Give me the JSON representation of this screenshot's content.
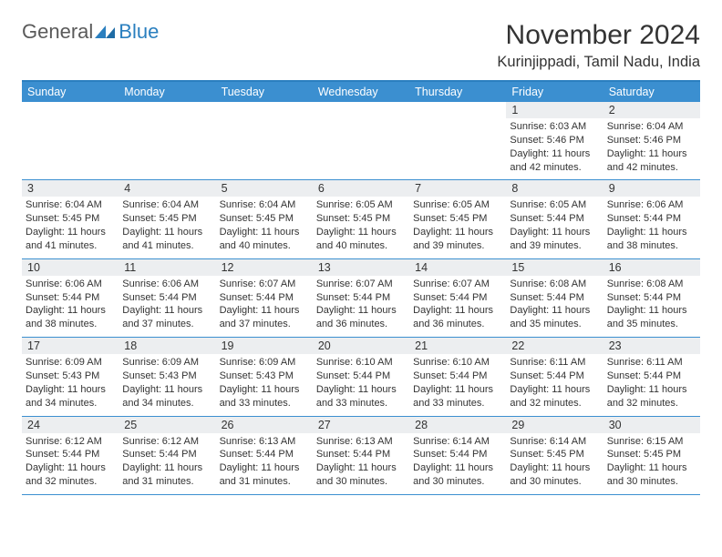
{
  "logo": {
    "general": "General",
    "blue": "Blue",
    "shape_color": "#2a7fbf"
  },
  "title": "November 2024",
  "location": "Kurinjippadi, Tamil Nadu, India",
  "colors": {
    "header_bar": "#3b8fd0",
    "border": "#2a7fbf",
    "daynum_bg": "#eceef0",
    "text": "#333333",
    "bg": "#ffffff"
  },
  "dow": [
    "Sunday",
    "Monday",
    "Tuesday",
    "Wednesday",
    "Thursday",
    "Friday",
    "Saturday"
  ],
  "weeks": [
    [
      {
        "n": "",
        "empty": true
      },
      {
        "n": "",
        "empty": true
      },
      {
        "n": "",
        "empty": true
      },
      {
        "n": "",
        "empty": true
      },
      {
        "n": "",
        "empty": true
      },
      {
        "n": "1",
        "sr": "6:03 AM",
        "ss": "5:46 PM",
        "dl": "11 hours and 42 minutes."
      },
      {
        "n": "2",
        "sr": "6:04 AM",
        "ss": "5:46 PM",
        "dl": "11 hours and 42 minutes."
      }
    ],
    [
      {
        "n": "3",
        "sr": "6:04 AM",
        "ss": "5:45 PM",
        "dl": "11 hours and 41 minutes."
      },
      {
        "n": "4",
        "sr": "6:04 AM",
        "ss": "5:45 PM",
        "dl": "11 hours and 41 minutes."
      },
      {
        "n": "5",
        "sr": "6:04 AM",
        "ss": "5:45 PM",
        "dl": "11 hours and 40 minutes."
      },
      {
        "n": "6",
        "sr": "6:05 AM",
        "ss": "5:45 PM",
        "dl": "11 hours and 40 minutes."
      },
      {
        "n": "7",
        "sr": "6:05 AM",
        "ss": "5:45 PM",
        "dl": "11 hours and 39 minutes."
      },
      {
        "n": "8",
        "sr": "6:05 AM",
        "ss": "5:44 PM",
        "dl": "11 hours and 39 minutes."
      },
      {
        "n": "9",
        "sr": "6:06 AM",
        "ss": "5:44 PM",
        "dl": "11 hours and 38 minutes."
      }
    ],
    [
      {
        "n": "10",
        "sr": "6:06 AM",
        "ss": "5:44 PM",
        "dl": "11 hours and 38 minutes."
      },
      {
        "n": "11",
        "sr": "6:06 AM",
        "ss": "5:44 PM",
        "dl": "11 hours and 37 minutes."
      },
      {
        "n": "12",
        "sr": "6:07 AM",
        "ss": "5:44 PM",
        "dl": "11 hours and 37 minutes."
      },
      {
        "n": "13",
        "sr": "6:07 AM",
        "ss": "5:44 PM",
        "dl": "11 hours and 36 minutes."
      },
      {
        "n": "14",
        "sr": "6:07 AM",
        "ss": "5:44 PM",
        "dl": "11 hours and 36 minutes."
      },
      {
        "n": "15",
        "sr": "6:08 AM",
        "ss": "5:44 PM",
        "dl": "11 hours and 35 minutes."
      },
      {
        "n": "16",
        "sr": "6:08 AM",
        "ss": "5:44 PM",
        "dl": "11 hours and 35 minutes."
      }
    ],
    [
      {
        "n": "17",
        "sr": "6:09 AM",
        "ss": "5:43 PM",
        "dl": "11 hours and 34 minutes."
      },
      {
        "n": "18",
        "sr": "6:09 AM",
        "ss": "5:43 PM",
        "dl": "11 hours and 34 minutes."
      },
      {
        "n": "19",
        "sr": "6:09 AM",
        "ss": "5:43 PM",
        "dl": "11 hours and 33 minutes."
      },
      {
        "n": "20",
        "sr": "6:10 AM",
        "ss": "5:44 PM",
        "dl": "11 hours and 33 minutes."
      },
      {
        "n": "21",
        "sr": "6:10 AM",
        "ss": "5:44 PM",
        "dl": "11 hours and 33 minutes."
      },
      {
        "n": "22",
        "sr": "6:11 AM",
        "ss": "5:44 PM",
        "dl": "11 hours and 32 minutes."
      },
      {
        "n": "23",
        "sr": "6:11 AM",
        "ss": "5:44 PM",
        "dl": "11 hours and 32 minutes."
      }
    ],
    [
      {
        "n": "24",
        "sr": "6:12 AM",
        "ss": "5:44 PM",
        "dl": "11 hours and 32 minutes."
      },
      {
        "n": "25",
        "sr": "6:12 AM",
        "ss": "5:44 PM",
        "dl": "11 hours and 31 minutes."
      },
      {
        "n": "26",
        "sr": "6:13 AM",
        "ss": "5:44 PM",
        "dl": "11 hours and 31 minutes."
      },
      {
        "n": "27",
        "sr": "6:13 AM",
        "ss": "5:44 PM",
        "dl": "11 hours and 30 minutes."
      },
      {
        "n": "28",
        "sr": "6:14 AM",
        "ss": "5:44 PM",
        "dl": "11 hours and 30 minutes."
      },
      {
        "n": "29",
        "sr": "6:14 AM",
        "ss": "5:45 PM",
        "dl": "11 hours and 30 minutes."
      },
      {
        "n": "30",
        "sr": "6:15 AM",
        "ss": "5:45 PM",
        "dl": "11 hours and 30 minutes."
      }
    ]
  ],
  "labels": {
    "sunrise": "Sunrise:",
    "sunset": "Sunset:",
    "daylight": "Daylight:"
  }
}
